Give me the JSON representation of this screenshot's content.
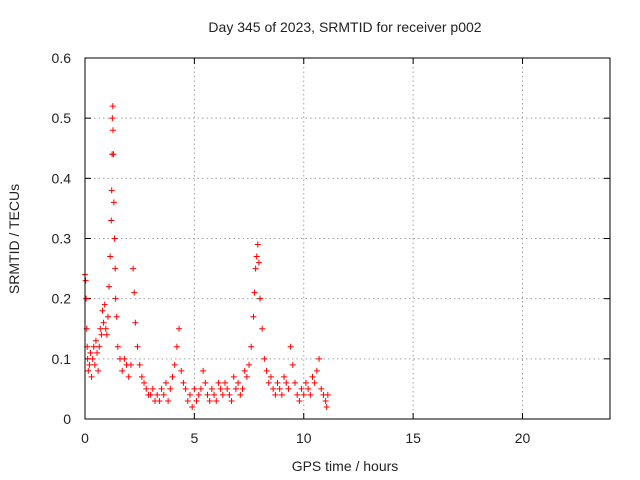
{
  "chart_data": {
    "type": "scatter",
    "title": "Day 345 of 2023, SRMTID for receiver p002",
    "xlabel": "GPS time / hours",
    "ylabel": "SRMTID / TECUs",
    "xlim": [
      0,
      24
    ],
    "ylim": [
      0,
      0.6
    ],
    "xticks": [
      0,
      5,
      10,
      15,
      20
    ],
    "yticks": [
      0,
      0.1,
      0.2,
      0.3,
      0.4,
      0.5,
      0.6
    ],
    "grid": true,
    "marker": "+",
    "color": "#ff0000",
    "series": [
      {
        "name": "SRMTID",
        "x": [
          0.0,
          0.03,
          0.05,
          0.08,
          0.1,
          0.12,
          0.15,
          0.2,
          0.25,
          0.3,
          0.35,
          0.4,
          0.45,
          0.5,
          0.55,
          0.6,
          0.65,
          0.7,
          0.75,
          0.8,
          0.85,
          0.9,
          0.95,
          1.0,
          1.05,
          1.1,
          1.15,
          1.2,
          1.22,
          1.24,
          1.25,
          1.27,
          1.28,
          1.3,
          1.32,
          1.35,
          1.38,
          1.4,
          1.45,
          1.5,
          1.6,
          1.7,
          1.8,
          1.9,
          2.0,
          2.1,
          2.2,
          2.25,
          2.3,
          2.4,
          2.5,
          2.6,
          2.7,
          2.8,
          2.9,
          3.0,
          3.1,
          3.2,
          3.3,
          3.4,
          3.5,
          3.6,
          3.7,
          3.8,
          3.9,
          4.0,
          4.1,
          4.2,
          4.3,
          4.4,
          4.5,
          4.6,
          4.7,
          4.8,
          4.9,
          5.0,
          5.1,
          5.2,
          5.3,
          5.4,
          5.5,
          5.6,
          5.7,
          5.8,
          5.9,
          6.0,
          6.1,
          6.2,
          6.3,
          6.4,
          6.5,
          6.6,
          6.7,
          6.8,
          6.9,
          7.0,
          7.1,
          7.2,
          7.3,
          7.4,
          7.5,
          7.6,
          7.7,
          7.75,
          7.8,
          7.85,
          7.9,
          7.95,
          8.0,
          8.1,
          8.2,
          8.3,
          8.4,
          8.5,
          8.6,
          8.7,
          8.8,
          8.9,
          9.0,
          9.1,
          9.2,
          9.3,
          9.4,
          9.5,
          9.6,
          9.7,
          9.8,
          9.9,
          10.0,
          10.1,
          10.2,
          10.3,
          10.4,
          10.5,
          10.6,
          10.7,
          10.8,
          10.9,
          11.0,
          11.05,
          11.1
        ],
        "y": [
          0.24,
          0.23,
          0.2,
          0.15,
          0.12,
          0.1,
          0.08,
          0.09,
          0.11,
          0.07,
          0.1,
          0.12,
          0.09,
          0.13,
          0.11,
          0.08,
          0.12,
          0.15,
          0.14,
          0.18,
          0.16,
          0.19,
          0.15,
          0.14,
          0.17,
          0.22,
          0.27,
          0.33,
          0.38,
          0.44,
          0.5,
          0.52,
          0.48,
          0.44,
          0.36,
          0.3,
          0.25,
          0.2,
          0.17,
          0.12,
          0.1,
          0.08,
          0.1,
          0.09,
          0.07,
          0.09,
          0.25,
          0.21,
          0.16,
          0.12,
          0.09,
          0.07,
          0.06,
          0.05,
          0.04,
          0.04,
          0.05,
          0.03,
          0.04,
          0.03,
          0.05,
          0.04,
          0.06,
          0.03,
          0.05,
          0.07,
          0.09,
          0.12,
          0.15,
          0.08,
          0.06,
          0.05,
          0.03,
          0.04,
          0.02,
          0.05,
          0.03,
          0.04,
          0.05,
          0.08,
          0.06,
          0.04,
          0.03,
          0.05,
          0.04,
          0.03,
          0.06,
          0.05,
          0.04,
          0.06,
          0.05,
          0.04,
          0.03,
          0.07,
          0.05,
          0.06,
          0.04,
          0.05,
          0.08,
          0.07,
          0.09,
          0.12,
          0.17,
          0.21,
          0.25,
          0.27,
          0.29,
          0.26,
          0.2,
          0.15,
          0.1,
          0.08,
          0.06,
          0.07,
          0.05,
          0.04,
          0.06,
          0.05,
          0.04,
          0.07,
          0.06,
          0.05,
          0.12,
          0.09,
          0.06,
          0.04,
          0.03,
          0.05,
          0.04,
          0.06,
          0.05,
          0.04,
          0.07,
          0.06,
          0.08,
          0.1,
          0.05,
          0.04,
          0.03,
          0.02,
          0.04
        ]
      }
    ]
  }
}
